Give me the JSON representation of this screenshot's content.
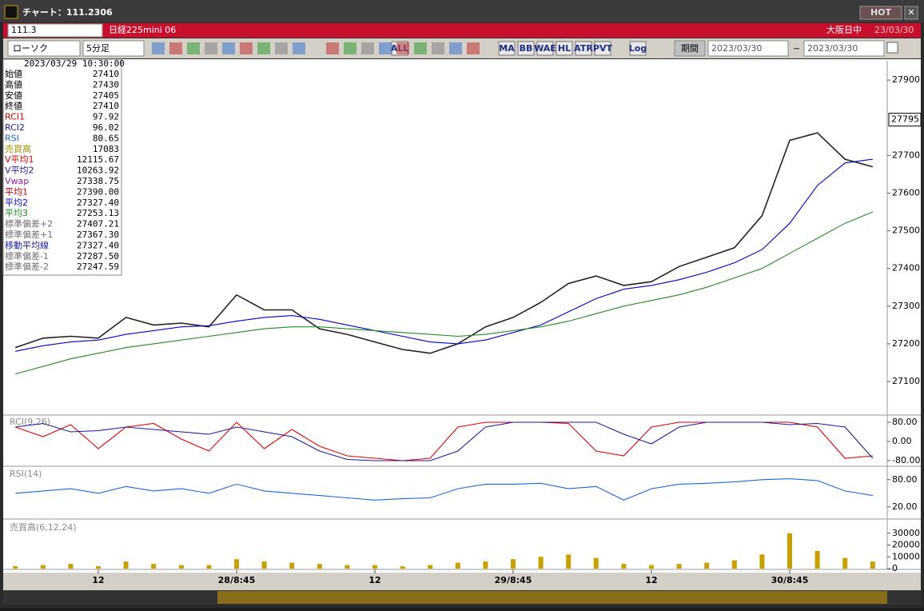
{
  "window": {
    "title": "チャート：111.2306",
    "hot": "HOT",
    "close": "✕"
  },
  "symbol_bar": {
    "input": "111.3",
    "instrument": "日経225mini 06",
    "market": "大阪日中",
    "date": "23/03/30"
  },
  "toolbar": {
    "chart_type": "ローソク",
    "interval": "5分足",
    "icons": [
      "ALL",
      "MA",
      "BB",
      "WAE",
      "HL",
      "ATR",
      "PVT",
      "Log"
    ],
    "period_button": "期間",
    "from": "2023/03/30",
    "tilde": "~",
    "to": "2023/03/30"
  },
  "info_panel": {
    "datetime": "2023/03/29 10:30:00",
    "rows": [
      {
        "label": "始値",
        "value": "27410",
        "color": "#000000"
      },
      {
        "label": "高値",
        "value": "27430",
        "color": "#000000"
      },
      {
        "label": "安値",
        "value": "27405",
        "color": "#000000"
      },
      {
        "label": "終値",
        "value": "27410",
        "color": "#000000"
      },
      {
        "label": "RCI1",
        "value": "97.92",
        "color": "#d00000"
      },
      {
        "label": "RCI2",
        "value": "96.02",
        "color": "#1a1aa0"
      },
      {
        "label": "RSI",
        "value": "80.65",
        "color": "#1e64e0"
      },
      {
        "label": "売買高",
        "value": "17083",
        "color": "#a09000"
      },
      {
        "label": "V平均1",
        "value": "12115.67",
        "color": "#d00000"
      },
      {
        "label": "V平均2",
        "value": "10263.92",
        "color": "#1a1aa0"
      },
      {
        "label": "Vwap",
        "value": "27338.75",
        "color": "#9020a0"
      },
      {
        "label": "平均1",
        "value": "27390.00",
        "color": "#d00000"
      },
      {
        "label": "平均2",
        "value": "27327.40",
        "color": "#0000cc"
      },
      {
        "label": "平均3",
        "value": "27253.13",
        "color": "#228b22"
      },
      {
        "label": "標準偏差+2",
        "value": "27407.21",
        "color": "#707070"
      },
      {
        "label": "標準偏差+1",
        "value": "27367.30",
        "color": "#707070"
      },
      {
        "label": "移動平均線",
        "value": "27327.40",
        "color": "#1a1aa0"
      },
      {
        "label": "標準偏差-1",
        "value": "27287.50",
        "color": "#707070"
      },
      {
        "label": "標準偏差-2",
        "value": "27247.59",
        "color": "#707070"
      }
    ]
  },
  "chart_data": [
    {
      "type": "line",
      "categories": [
        null,
        null,
        null,
        "12",
        null,
        null,
        null,
        null,
        "28/8:45",
        null,
        null,
        null,
        null,
        "12",
        null,
        null,
        null,
        null,
        "29/8:45",
        null,
        null,
        null,
        null,
        "12",
        null,
        null,
        null,
        null,
        "30/8:45",
        null,
        null,
        null
      ],
      "series": [
        {
          "name": "終値",
          "color": "#222222",
          "values": [
            27190,
            27215,
            27220,
            27215,
            27270,
            27250,
            27255,
            27245,
            27330,
            27290,
            27290,
            27240,
            27225,
            27205,
            27185,
            27175,
            27200,
            27245,
            27270,
            27310,
            27360,
            27380,
            27355,
            27365,
            27405,
            27430,
            27455,
            27540,
            27740,
            27760,
            27690,
            27670
          ]
        },
        {
          "name": "平均2",
          "color": "#0000cc",
          "values": [
            27180,
            27195,
            27205,
            27210,
            27225,
            27235,
            27245,
            27248,
            27260,
            27270,
            27275,
            27265,
            27250,
            27235,
            27220,
            27205,
            27200,
            27210,
            27230,
            27250,
            27285,
            27320,
            27345,
            27355,
            27370,
            27390,
            27415,
            27450,
            27520,
            27620,
            27680,
            27690
          ]
        },
        {
          "name": "平均3",
          "color": "#228b22",
          "values": [
            27120,
            27140,
            27160,
            27175,
            27190,
            27200,
            27210,
            27220,
            27230,
            27240,
            27245,
            27245,
            27240,
            27235,
            27230,
            27225,
            27220,
            27225,
            27235,
            27245,
            27260,
            27280,
            27300,
            27315,
            27330,
            27350,
            27375,
            27400,
            27440,
            27480,
            27520,
            27550
          ]
        }
      ],
      "ylim": [
        27013,
        27947
      ],
      "yticks": [
        27100,
        27200,
        27300,
        27400,
        27500,
        27600,
        27700,
        27900
      ],
      "last_price_label": 27795
    },
    {
      "type": "line",
      "title": "RCI(9,26)",
      "series": [
        {
          "name": "RCI1",
          "color": "#e00000",
          "values": [
            60,
            20,
            70,
            -30,
            60,
            75,
            10,
            -40,
            80,
            -30,
            50,
            -20,
            -60,
            -70,
            -80,
            -70,
            60,
            80,
            80,
            80,
            75,
            -40,
            -60,
            60,
            80,
            80,
            80,
            80,
            80,
            60,
            -70,
            -60
          ]
        },
        {
          "name": "RCI2",
          "color": "#1a1aa0",
          "values": [
            60,
            75,
            40,
            45,
            60,
            50,
            40,
            30,
            60,
            40,
            20,
            -40,
            -75,
            -80,
            -80,
            -80,
            -40,
            60,
            80,
            80,
            80,
            80,
            30,
            -10,
            60,
            80,
            80,
            80,
            70,
            75,
            60,
            -70
          ]
        }
      ],
      "ylim": [
        -100,
        106.7
      ],
      "yticks": [
        {
          "value": 80,
          "label": "80.00"
        },
        {
          "value": 0,
          "label": "0.00"
        },
        {
          "value": -80,
          "label": "-80.00"
        }
      ]
    },
    {
      "type": "line",
      "title": "RSI(14)",
      "series": [
        {
          "name": "RSI",
          "color": "#1e64e0",
          "values": [
            50,
            55,
            60,
            50,
            65,
            55,
            60,
            50,
            70,
            55,
            50,
            45,
            40,
            35,
            38,
            40,
            60,
            70,
            70,
            72,
            60,
            65,
            35,
            60,
            70,
            72,
            75,
            80,
            82,
            78,
            55,
            45
          ]
        }
      ],
      "ylim": [
        -5,
        106
      ],
      "yticks": [
        {
          "value": 80,
          "label": "80.00"
        },
        {
          "value": 20,
          "label": "20.00"
        }
      ]
    },
    {
      "type": "bar",
      "title": "売買高(6,12,24)",
      "color": "#c8a000",
      "values": [
        2000,
        3000,
        4000,
        2000,
        6000,
        4000,
        3000,
        3000,
        8000,
        6000,
        5000,
        4000,
        3000,
        3000,
        2000,
        3000,
        5000,
        6000,
        8000,
        10000,
        12000,
        9000,
        4000,
        3000,
        4000,
        5000,
        7000,
        12000,
        30000,
        15000,
        9000,
        6000
      ],
      "ylim": [
        0,
        40000
      ],
      "yticks": [
        0,
        10000,
        20000,
        30000
      ]
    }
  ]
}
